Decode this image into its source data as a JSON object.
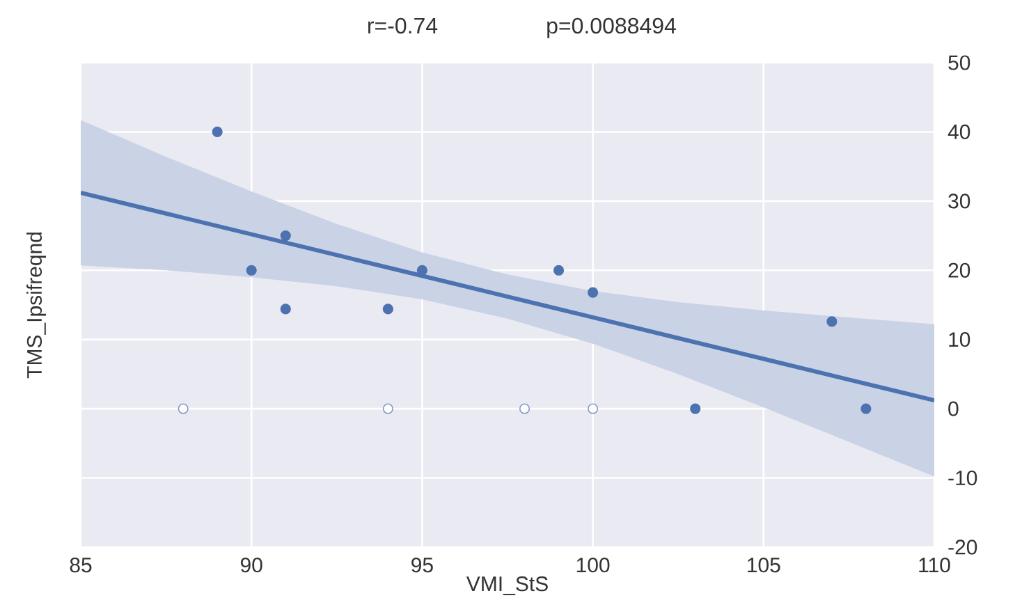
{
  "chart_data": {
    "type": "scatter",
    "annotations": [
      "r=-0.74",
      "p=0.0088494"
    ],
    "xlabel": "VMI_StS",
    "ylabel": "TMS_Ipsifreqnd",
    "series": [
      {
        "marker": "circle",
        "color": "#4c72b0",
        "x": [
          89,
          90,
          91,
          91,
          94,
          95,
          99,
          100,
          103,
          107,
          108
        ],
        "values": [
          40,
          20,
          25,
          14.4,
          14.4,
          20,
          20,
          16.8,
          0,
          12.6,
          0
        ]
      },
      {
        "marker": "circle",
        "color": "#ffffff",
        "x": [
          88,
          94,
          98,
          100
        ],
        "values": [
          0,
          0,
          0,
          0
        ]
      },
      {
        "type": "line",
        "marker": "none",
        "color": "#4c72b0",
        "x": [
          85,
          87.5,
          90,
          92.5,
          95,
          97.5,
          100,
          102.5,
          105,
          107.5,
          110
        ],
        "values": [
          31.2,
          28.2,
          25.2,
          22.2,
          19.2,
          16.2,
          13.2,
          10.2,
          7.2,
          4.2,
          1.2
        ],
        "lower": [
          20.7,
          20.0,
          19.0,
          17.7,
          15.8,
          13.0,
          9.4,
          5.0,
          0.2,
          -4.8,
          -9.8
        ],
        "upper": [
          41.7,
          36.4,
          31.4,
          26.7,
          22.6,
          19.4,
          17.0,
          15.4,
          14.2,
          13.2,
          12.2
        ]
      }
    ],
    "xlim": [
      85,
      110
    ],
    "ylim": [
      -20,
      50
    ],
    "xticks": [
      85,
      90,
      95,
      100,
      105,
      110
    ],
    "yticks": [
      -20,
      -10,
      0,
      10,
      20,
      30,
      40,
      50
    ],
    "grid": true,
    "line_style": "solid"
  }
}
